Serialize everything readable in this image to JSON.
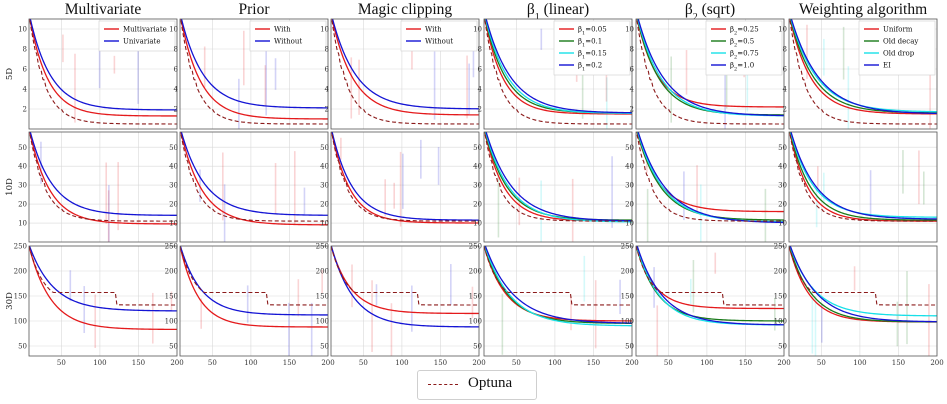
{
  "figure": {
    "legend": {
      "label": "Optuna",
      "color": "#8b1a1a"
    },
    "row_labels": [
      "5D",
      "10D",
      "30D"
    ],
    "x_ticks": [
      50,
      100,
      150,
      200
    ],
    "x_range": [
      8,
      200
    ],
    "rows": [
      {
        "label": "5D",
        "ylim": [
          0,
          11
        ],
        "yticks": [
          2,
          4,
          6,
          8,
          10
        ],
        "start": 11.5
      },
      {
        "label": "10D",
        "ylim": [
          0,
          58
        ],
        "yticks": [
          10,
          20,
          30,
          40,
          50
        ],
        "start": 60
      },
      {
        "label": "30D",
        "ylim": [
          30,
          250
        ],
        "yticks": [
          50,
          100,
          150,
          200,
          250
        ],
        "start": 250
      }
    ],
    "optuna_final": [
      0.5,
      11,
      132
    ],
    "colors": {
      "red": "#e41a1c",
      "blue": "#1414d4",
      "green": "#1a7a1a",
      "cyan": "#18e0e8",
      "optuna": "#8b1a1a"
    }
  },
  "chart_data": [
    {
      "type": "line",
      "title": "Multivariate",
      "legend": [
        "Multivariate",
        "Univariate"
      ],
      "legend_tex": [
        null,
        null
      ],
      "colors": [
        "red",
        "blue"
      ],
      "final": [
        [
          1.3,
          1.9
        ],
        [
          9.5,
          14
        ],
        [
          83,
          120
        ]
      ]
    },
    {
      "type": "line",
      "title": "Prior",
      "legend": [
        "With",
        "Without"
      ],
      "legend_tex": [
        null,
        null
      ],
      "colors": [
        "red",
        "blue"
      ],
      "final": [
        [
          1.0,
          2.1
        ],
        [
          9,
          14
        ],
        [
          88,
          112
        ]
      ]
    },
    {
      "type": "line",
      "title": "Magic clipping",
      "legend": [
        "With",
        "Without"
      ],
      "legend_tex": [
        null,
        null
      ],
      "colors": [
        "red",
        "blue"
      ],
      "final": [
        [
          1.4,
          2.0
        ],
        [
          10,
          11.5
        ],
        [
          115,
          88
        ]
      ]
    },
    {
      "type": "line",
      "title": "β1 (linear)",
      "title_tex": {
        "base": "β",
        "sub": "1",
        "rest": " (linear)"
      },
      "legend": [
        "β1=0.05",
        "β1=0.1",
        "β1=0.15",
        "β1=0.2"
      ],
      "legend_tex": [
        {
          "base": "β",
          "sub": "1",
          "rest": "=0.05"
        },
        {
          "base": "β",
          "sub": "1",
          "rest": "=0.1"
        },
        {
          "base": "β",
          "sub": "1",
          "rest": "=0.15"
        },
        {
          "base": "β",
          "sub": "1",
          "rest": "=0.2"
        }
      ],
      "colors": [
        "red",
        "green",
        "cyan",
        "blue"
      ],
      "final": [
        [
          1.5,
          1.6,
          1.55,
          1.6
        ],
        [
          11,
          11.5,
          10.5,
          11
        ],
        [
          100,
          95,
          90,
          95
        ]
      ]
    },
    {
      "type": "line",
      "title": "β2 (sqrt)",
      "title_tex": {
        "base": "β",
        "sub": "2",
        "rest": " (sqrt)"
      },
      "legend": [
        "β2=0.25",
        "β2=0.5",
        "β2=0.75",
        "β2=1.0"
      ],
      "legend_tex": [
        {
          "base": "β",
          "sub": "2",
          "rest": "=0.25"
        },
        {
          "base": "β",
          "sub": "2",
          "rest": "=0.5"
        },
        {
          "base": "β",
          "sub": "2",
          "rest": "=0.75"
        },
        {
          "base": "β",
          "sub": "2",
          "rest": "=1.0"
        }
      ],
      "colors": [
        "red",
        "green",
        "cyan",
        "blue"
      ],
      "final": [
        [
          2.2,
          1.4,
          1.3,
          1.3
        ],
        [
          16,
          11.5,
          10.5,
          10
        ],
        [
          125,
          100,
          92,
          92
        ]
      ]
    },
    {
      "type": "line",
      "title": "Weighting algorithm",
      "legend": [
        "Uniform",
        "Old decay",
        "Old drop",
        "EI"
      ],
      "legend_tex": [
        null,
        null,
        null,
        null
      ],
      "colors": [
        "red",
        "green",
        "cyan",
        "blue"
      ],
      "final": [
        [
          1.5,
          1.6,
          1.7,
          1.5
        ],
        [
          11,
          11.5,
          13,
          12
        ],
        [
          98,
          98,
          110,
          98
        ]
      ]
    }
  ]
}
